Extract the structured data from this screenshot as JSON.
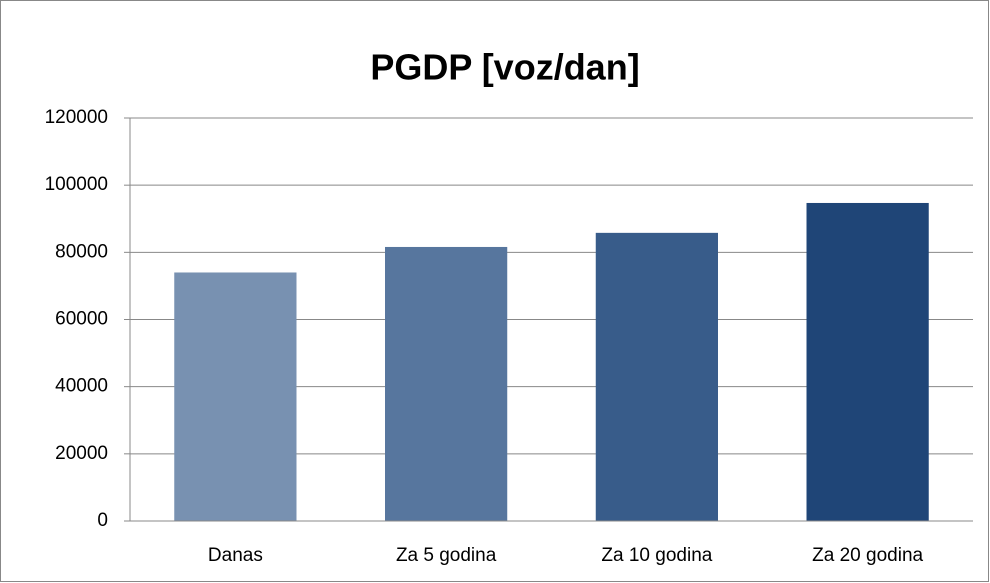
{
  "chart_data": {
    "type": "bar",
    "title": "PGDP [voz/dan]",
    "categories": [
      "Danas",
      "Za 5 godina",
      "Za 10 godina",
      "Za 20 godina"
    ],
    "values": [
      74000,
      81600,
      85800,
      94700
    ],
    "colors": [
      "#7891b1",
      "#57769e",
      "#385c8a",
      "#1f4577"
    ],
    "ylim": [
      0,
      120000
    ],
    "yticks": [
      0,
      20000,
      40000,
      60000,
      80000,
      100000,
      120000
    ],
    "grid": true
  }
}
